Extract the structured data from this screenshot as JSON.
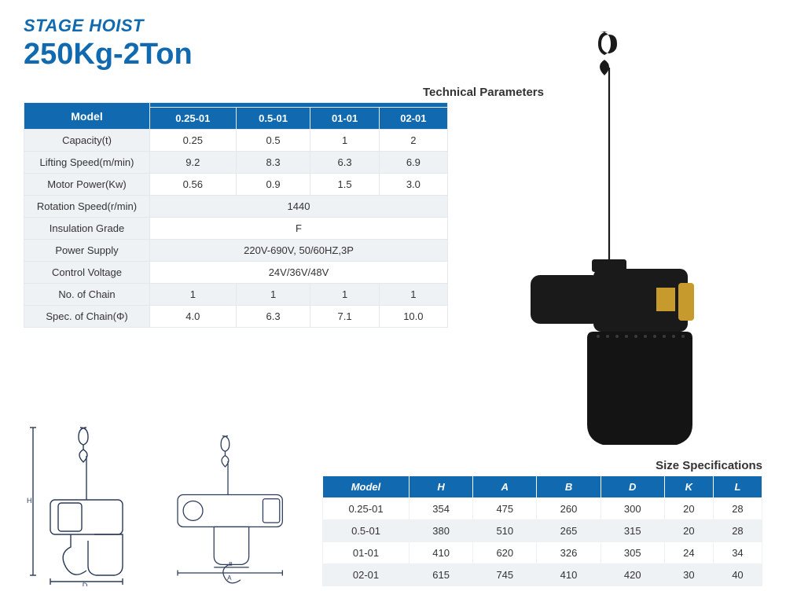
{
  "header": {
    "small": "STAGE HOIST",
    "big": "250Kg-2Ton"
  },
  "tech": {
    "title": "Technical Parameters",
    "header_model": "Model",
    "model_cols": [
      "0.25-01",
      "0.5-01",
      "01-01",
      "02-01"
    ],
    "rows": [
      {
        "label": "Capacity(t)",
        "vals": [
          "0.25",
          "0.5",
          "1",
          "2"
        ],
        "alt": false
      },
      {
        "label": "Lifting Speed(m/min)",
        "vals": [
          "9.2",
          "8.3",
          "6.3",
          "6.9"
        ],
        "alt": true
      },
      {
        "label": "Motor Power(Kw)",
        "vals": [
          "0.56",
          "0.9",
          "1.5",
          "3.0"
        ],
        "alt": false
      },
      {
        "label": "Rotation Speed(r/min)",
        "span": "1440",
        "alt": true
      },
      {
        "label": "Insulation Grade",
        "span": "F",
        "alt": false
      },
      {
        "label": "Power Supply",
        "span": "220V-690V, 50/60HZ,3P",
        "alt": true
      },
      {
        "label": "Control Voltage",
        "span": "24V/36V/48V",
        "alt": false
      },
      {
        "label": "No. of Chain",
        "vals": [
          "1",
          "1",
          "1",
          "1"
        ],
        "alt": true
      },
      {
        "label": "Spec. of Chain(Φ)",
        "vals": [
          "4.0",
          "6.3",
          "7.1",
          "10.0"
        ],
        "alt": false
      }
    ]
  },
  "size": {
    "title": "Size Specifications",
    "header_model": "Model",
    "cols": [
      "H",
      "A",
      "B",
      "D",
      "K",
      "L"
    ],
    "rows": [
      {
        "model": "0.25-01",
        "v": [
          "354",
          "475",
          "260",
          "300",
          "20",
          "28"
        ],
        "alt": false
      },
      {
        "model": "0.5-01",
        "v": [
          "380",
          "510",
          "265",
          "315",
          "20",
          "28"
        ],
        "alt": true
      },
      {
        "model": "01-01",
        "v": [
          "410",
          "620",
          "326",
          "305",
          "24",
          "34"
        ],
        "alt": false
      },
      {
        "model": "02-01",
        "v": [
          "615",
          "745",
          "410",
          "420",
          "30",
          "40"
        ],
        "alt": true
      }
    ]
  },
  "colors": {
    "brand": "#1169b0",
    "row_alt": "#eef2f5",
    "border": "#e4e8ed",
    "text": "#333333",
    "product_body": "#1a1a1a",
    "diagram_stroke": "#2a3a5a"
  }
}
